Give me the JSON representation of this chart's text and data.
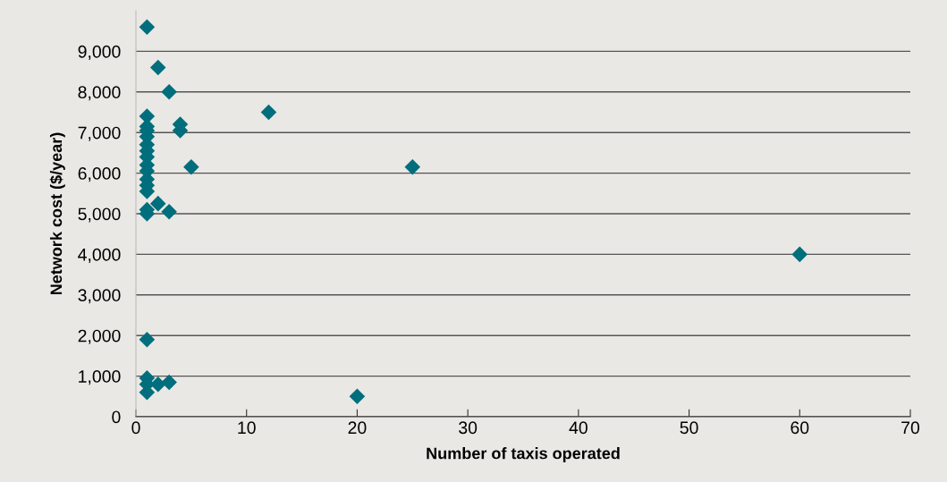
{
  "chart_data": {
    "type": "scatter",
    "xlabel": "Number of taxis operated",
    "ylabel": "Network cost ($/year)",
    "x": [
      1,
      1,
      1,
      1,
      1,
      1,
      1,
      1,
      1,
      1,
      1,
      1,
      1,
      1,
      1,
      1,
      1,
      1,
      1,
      2,
      2,
      2,
      3,
      3,
      3,
      4,
      4,
      5,
      12,
      20,
      25,
      60
    ],
    "values": [
      9600,
      7400,
      7150,
      7050,
      6900,
      6700,
      6550,
      6400,
      6200,
      6050,
      5850,
      5700,
      5550,
      5100,
      5000,
      1900,
      950,
      800,
      600,
      8600,
      5250,
      800,
      8000,
      5050,
      850,
      7200,
      7050,
      6150,
      7500,
      500,
      6150,
      4000
    ],
    "color": "#006e7c",
    "marker": "diamond",
    "xlim": [
      0,
      70
    ],
    "xticks": [
      0,
      10,
      20,
      30,
      40,
      50,
      60,
      70
    ],
    "ylim": [
      0,
      10000
    ],
    "yticks": [
      {
        "value": 0,
        "label": "0"
      },
      {
        "value": 1000,
        "label": "1,000"
      },
      {
        "value": 2000,
        "label": "2,000"
      },
      {
        "value": 3000,
        "label": "3,000"
      },
      {
        "value": 4000,
        "label": "4,000"
      },
      {
        "value": 5000,
        "label": "5,000"
      },
      {
        "value": 6000,
        "label": "6,000"
      },
      {
        "value": 7000,
        "label": "7,000"
      },
      {
        "value": 8000,
        "label": "8,000"
      },
      {
        "value": 9000,
        "label": "9,000"
      }
    ],
    "grid": "y"
  }
}
